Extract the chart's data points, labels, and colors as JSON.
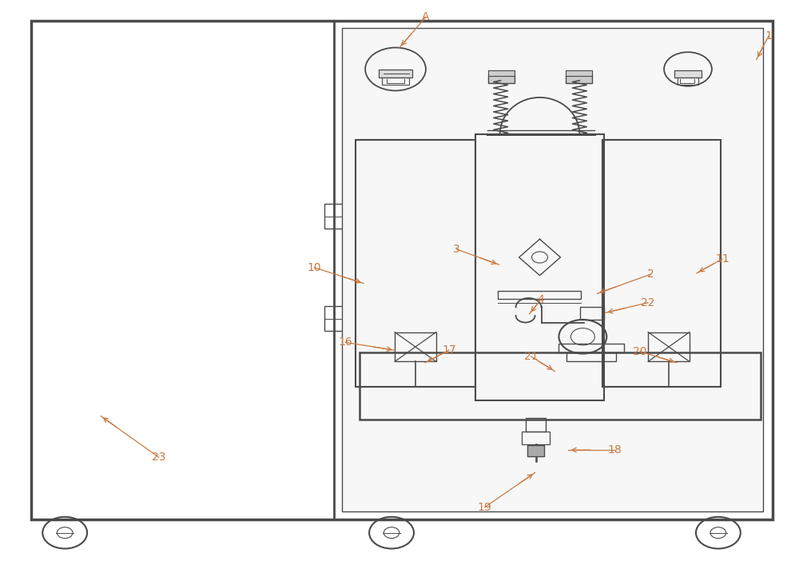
{
  "bg_color": "#ffffff",
  "line_color": "#4a4a4a",
  "label_color": "#c87941",
  "fig_width": 10.0,
  "fig_height": 7.12
}
